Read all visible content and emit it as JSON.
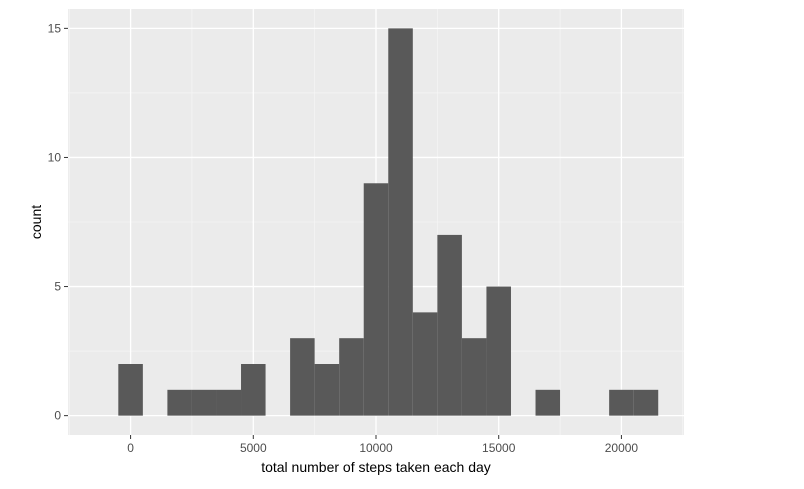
{
  "chart_data": {
    "type": "bar",
    "subtype": "histogram",
    "title": "",
    "xlabel": "total number of steps taken each day",
    "ylabel": "count",
    "bin_width": 1000,
    "bins": [
      {
        "center": 0,
        "count": 2
      },
      {
        "center": 1000,
        "count": 0
      },
      {
        "center": 2000,
        "count": 1
      },
      {
        "center": 3000,
        "count": 1
      },
      {
        "center": 4000,
        "count": 1
      },
      {
        "center": 5000,
        "count": 2
      },
      {
        "center": 6000,
        "count": 0
      },
      {
        "center": 7000,
        "count": 3
      },
      {
        "center": 8000,
        "count": 2
      },
      {
        "center": 9000,
        "count": 3
      },
      {
        "center": 10000,
        "count": 9
      },
      {
        "center": 11000,
        "count": 15
      },
      {
        "center": 12000,
        "count": 4
      },
      {
        "center": 13000,
        "count": 7
      },
      {
        "center": 14000,
        "count": 3
      },
      {
        "center": 15000,
        "count": 5
      },
      {
        "center": 16000,
        "count": 0
      },
      {
        "center": 17000,
        "count": 1
      },
      {
        "center": 18000,
        "count": 0
      },
      {
        "center": 19000,
        "count": 0
      },
      {
        "center": 20000,
        "count": 1
      },
      {
        "center": 21000,
        "count": 1
      }
    ],
    "x_ticks": [
      0,
      5000,
      10000,
      15000,
      20000
    ],
    "x_tick_labels": [
      "0",
      "5000",
      "10000",
      "15000",
      "20000"
    ],
    "y_ticks": [
      0,
      5,
      10,
      15
    ],
    "y_tick_labels": [
      "0",
      "5",
      "10",
      "15"
    ],
    "xlim": [
      -2550,
      22550
    ],
    "ylim": [
      -0.75,
      15.75
    ],
    "grid": true,
    "colors": {
      "bar_fill": "#595959",
      "panel_background": "#ebebeb",
      "grid_major": "#ffffff",
      "grid_minor": "#f5f5f5"
    }
  }
}
